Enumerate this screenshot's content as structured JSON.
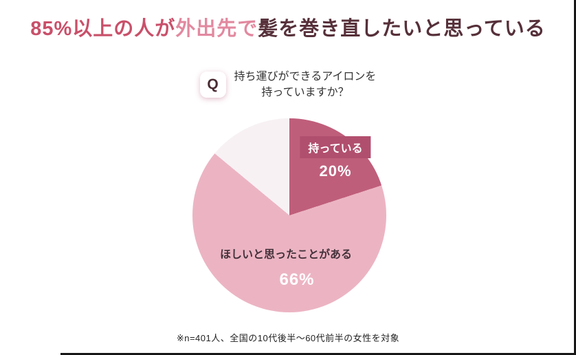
{
  "title": {
    "part1": "85%以上の人が",
    "part2": "外出先で",
    "part3": "髪を巻き直したいと思っている"
  },
  "question": {
    "badge": "Q",
    "line1": "持ち運びができるアイロンを",
    "line2": "持っていますか？"
  },
  "chart_data": {
    "type": "pie",
    "title": "持ち運びができるアイロンを持っていますか？",
    "start_angle_deg": 0,
    "direction": "clockwise",
    "legend": "none",
    "slices": [
      {
        "label": "持っている",
        "value": 20,
        "display": "20%",
        "color": "#bf5e7b"
      },
      {
        "label": "ほしいと思ったことがある",
        "value": 66,
        "display": "66%",
        "color": "#ecb4c3"
      },
      {
        "label": "",
        "value": 14,
        "display": "",
        "color": "#f7f1f4"
      }
    ]
  },
  "footnote": "※n=401人、全国の10代後半〜60代前半の女性を対象",
  "colors": {
    "title_accent": "#c9506a",
    "title_light_accent": "#e289a0",
    "title_dark": "#56303a",
    "own_label_box": "#b14f6e",
    "background": "#ffffff"
  }
}
